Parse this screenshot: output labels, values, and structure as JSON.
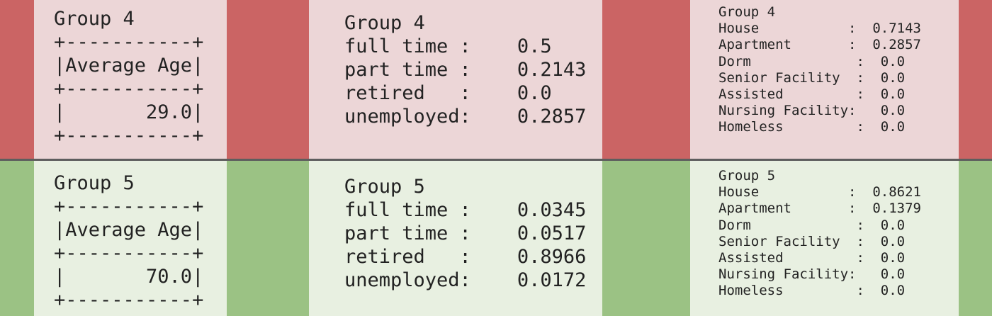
{
  "groups": [
    {
      "theme": "red",
      "age_table": {
        "title": "Group 4",
        "border": "+-----------+",
        "header": "|Average Age|",
        "row": "|       29.0|"
      },
      "employment": {
        "title": "Group 4",
        "rows": [
          "full time :    0.5",
          "part time :    0.2143",
          "retired   :    0.0",
          "unemployed:    0.2857"
        ]
      },
      "residence": {
        "title": "Group 4",
        "rows": [
          "House           :  0.7143",
          "Apartment       :  0.2857",
          "Dorm             :  0.0",
          "Senior Facility  :  0.0",
          "Assisted         :  0.0",
          "Nursing Facility:   0.0",
          "Homeless         :  0.0"
        ]
      }
    },
    {
      "theme": "green",
      "age_table": {
        "title": "Group 5",
        "border": "+-----------+",
        "header": "|Average Age|",
        "row": "|       70.0|"
      },
      "employment": {
        "title": "Group 5",
        "rows": [
          "full time :    0.0345",
          "part time :    0.0517",
          "retired   :    0.8966",
          "unemployed:    0.0172"
        ]
      },
      "residence": {
        "title": "Group 5",
        "rows": [
          "House           :  0.8621",
          "Apartment       :  0.1379",
          "Dorm             :  0.0",
          "Senior Facility  :  0.0",
          "Assisted         :  0.0",
          "Nursing Facility:   0.0",
          "Homeless         :  0.0"
        ]
      }
    }
  ],
  "colors": {
    "red_band": "#cb6464",
    "red_panel": "#ecd6d7",
    "green_band": "#9bc284",
    "green_panel": "#e8f0e1",
    "divider": "#5e5e5e",
    "text": "#222222"
  }
}
